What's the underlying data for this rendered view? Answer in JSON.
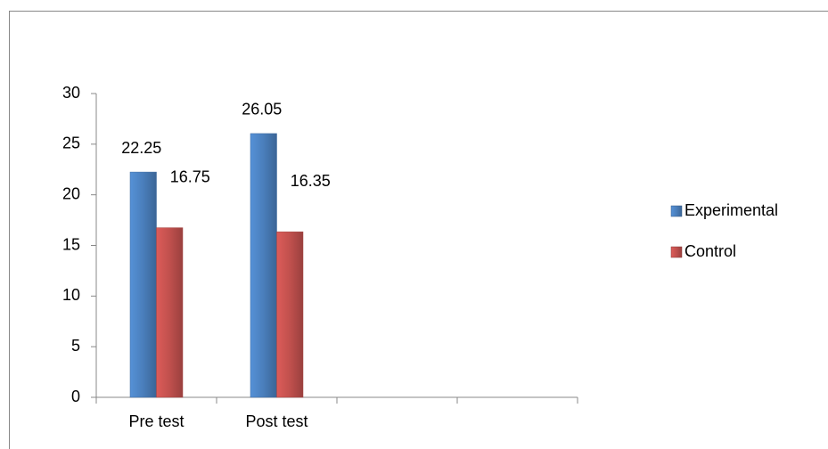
{
  "chart_data": {
    "type": "bar",
    "categories": [
      "Pre test",
      "Post test",
      null,
      null
    ],
    "series": [
      {
        "name": "Experimental",
        "color": "#4a7ebb",
        "values": [
          22.25,
          26.05,
          null,
          null
        ]
      },
      {
        "name": "Control",
        "color": "#c0504d",
        "values": [
          16.75,
          16.35,
          null,
          null
        ]
      }
    ],
    "ylim": [
      0,
      30
    ],
    "yticks": [
      0,
      5,
      10,
      15,
      20,
      25,
      30
    ],
    "grid": false,
    "legend": "right",
    "data_labels": true
  }
}
